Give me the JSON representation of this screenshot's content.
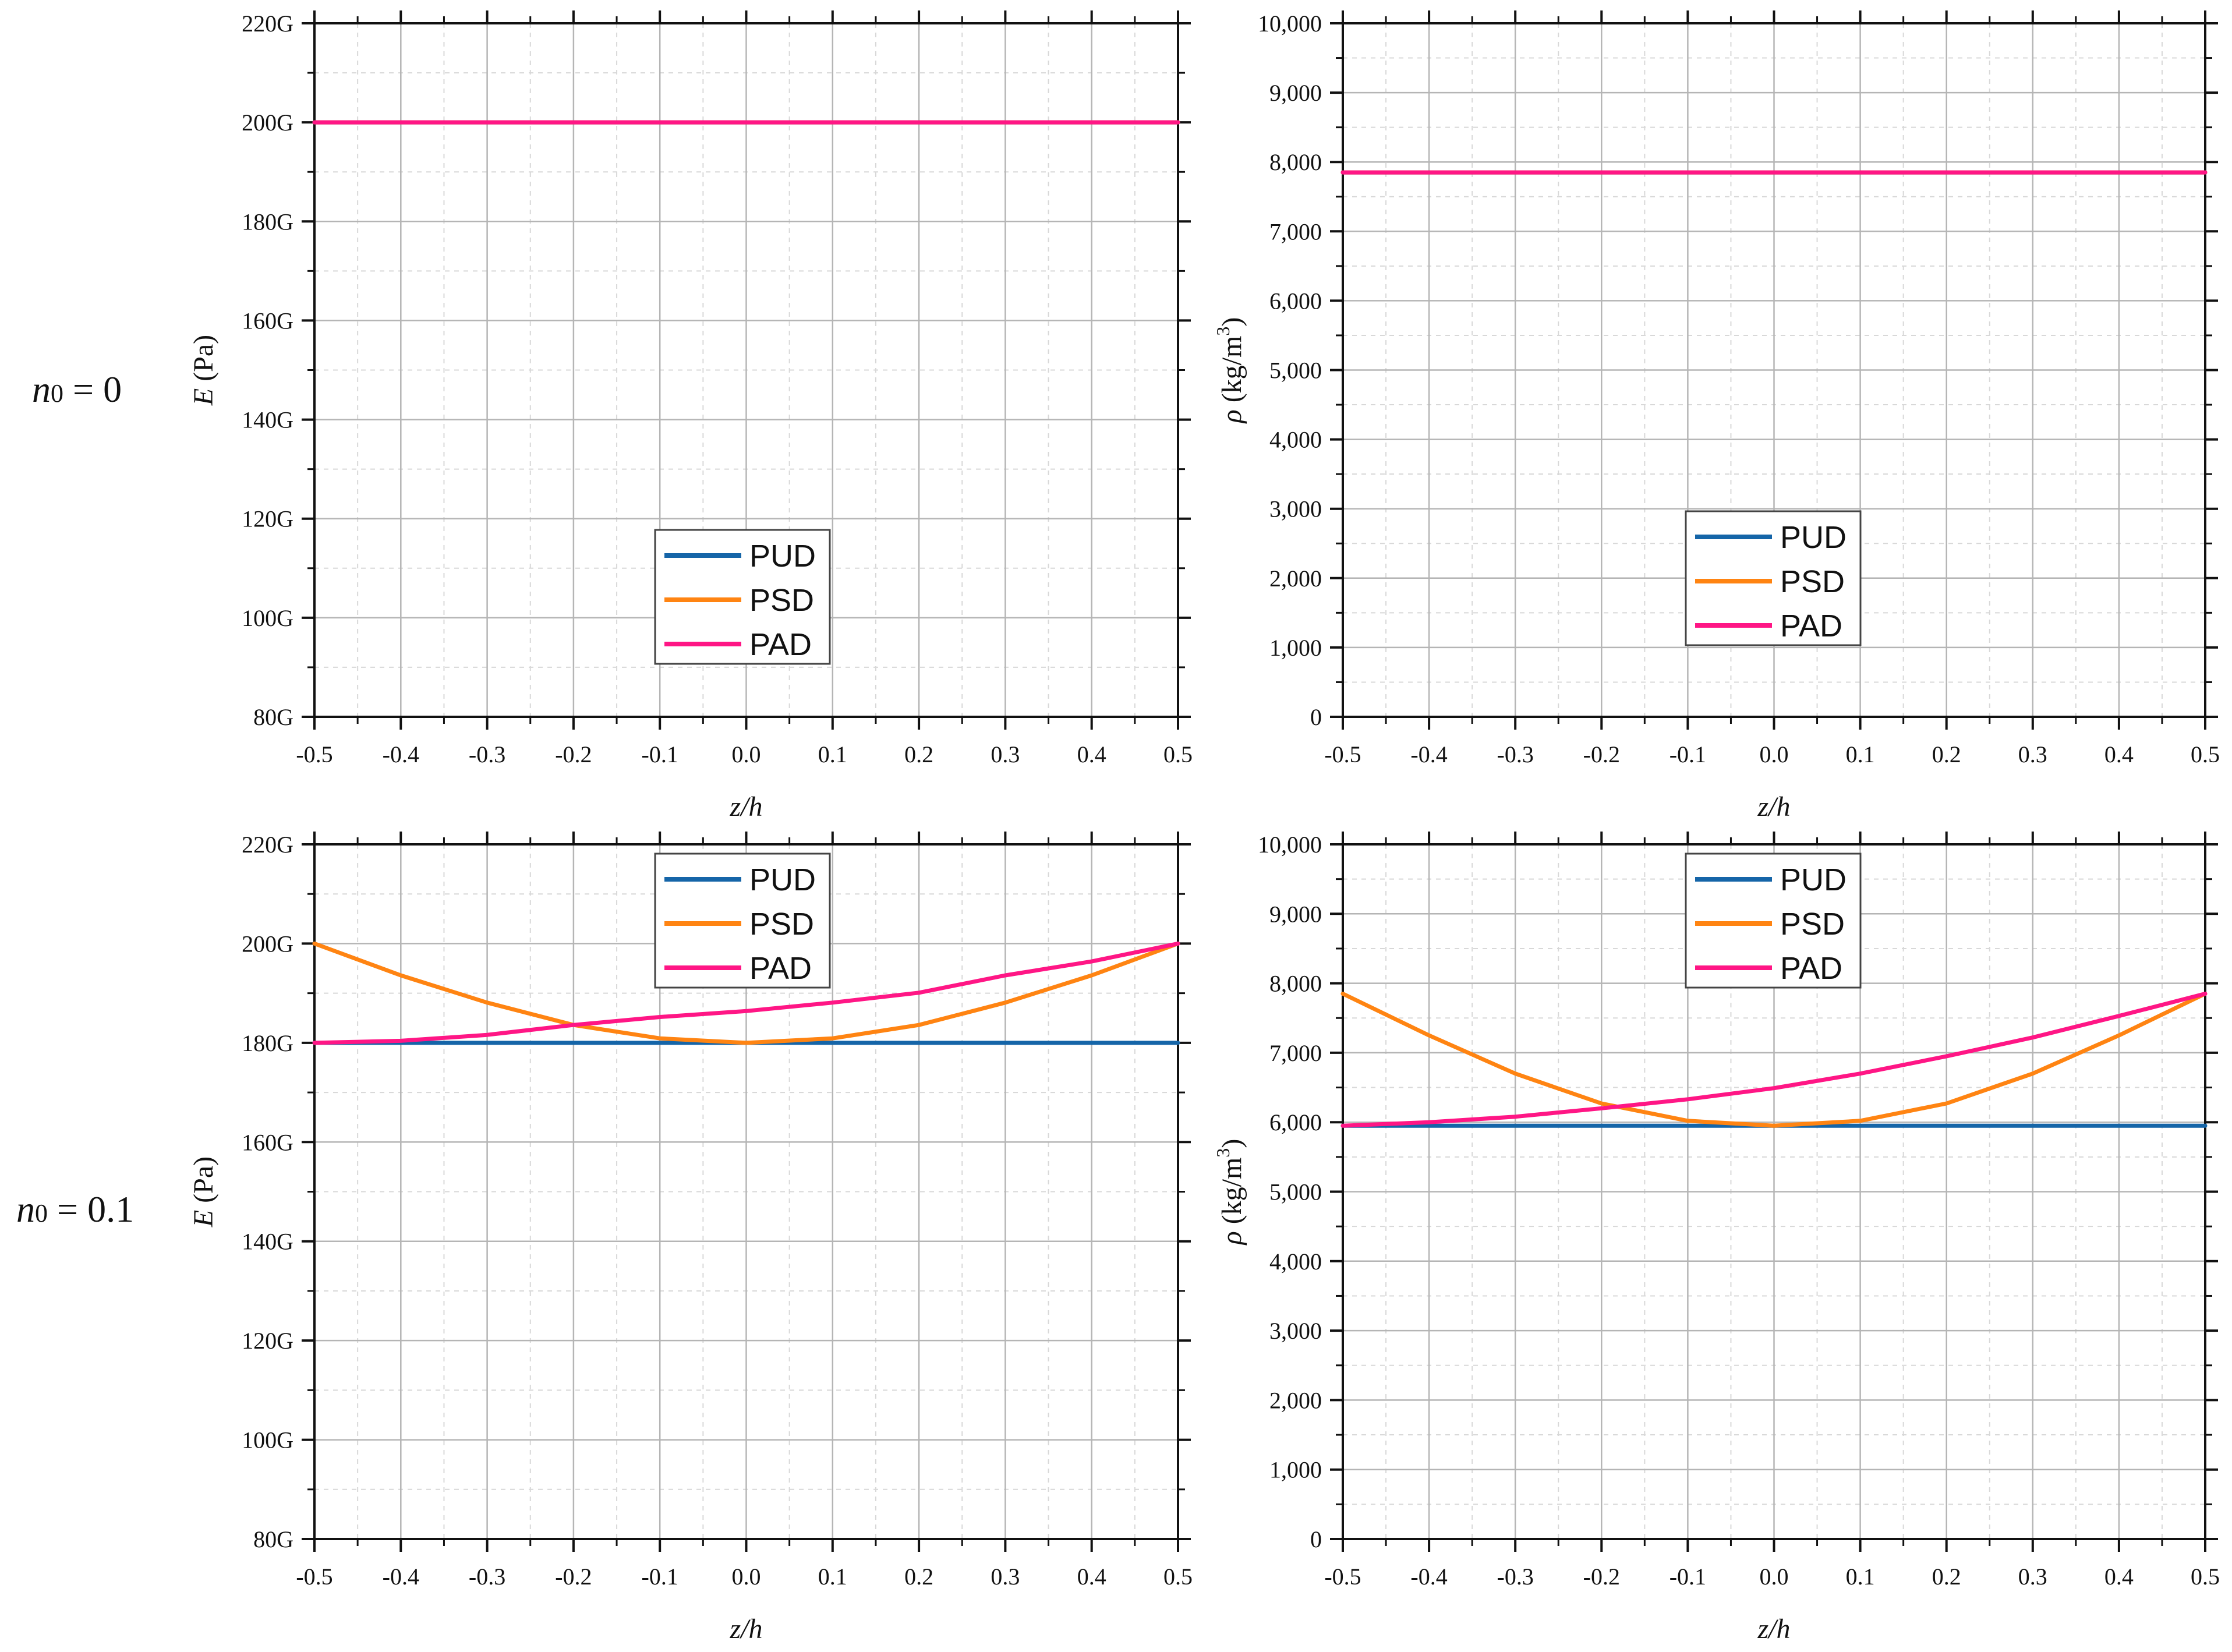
{
  "row_labels": [
    {
      "var": "n",
      "sub": "0",
      "rest": " = 0"
    },
    {
      "var": "n",
      "sub": "0",
      "rest": " = 0.1"
    }
  ],
  "colors": {
    "PUD": "#1565a8",
    "PSD": "#ff8412",
    "PAD": "#ff1685"
  },
  "chart_data": [
    {
      "type": "line",
      "panel": "E, n0 = 0",
      "xlabel": "z/h",
      "ylabel": {
        "var": "E",
        "unit": " (Pa)"
      },
      "xlim": [
        -0.5,
        0.5
      ],
      "ylim": [
        80,
        220
      ],
      "x_ticks": [
        "-0.5",
        "-0.4",
        "-0.3",
        "-0.2",
        "-0.1",
        "0.0",
        "0.1",
        "0.2",
        "0.3",
        "0.4",
        "0.5"
      ],
      "y_ticks": [
        "80G",
        "100G",
        "120G",
        "140G",
        "160G",
        "180G",
        "200G",
        "220G"
      ],
      "legend_position": "bottom-center",
      "legend": [
        "PUD",
        "PSD",
        "PAD"
      ],
      "series": [
        {
          "name": "PUD",
          "x": [
            -0.5,
            0.5
          ],
          "y": [
            200,
            200
          ]
        },
        {
          "name": "PSD",
          "x": [
            -0.5,
            0.5
          ],
          "y": [
            200,
            200
          ]
        },
        {
          "name": "PAD",
          "x": [
            -0.5,
            0.5
          ],
          "y": [
            200,
            200
          ]
        }
      ]
    },
    {
      "type": "line",
      "panel": "rho, n0 = 0",
      "xlabel": "z/h",
      "ylabel": {
        "var": "ρ",
        "unit": " (kg/m",
        "sup": "3",
        "close": ")"
      },
      "xlim": [
        -0.5,
        0.5
      ],
      "ylim": [
        0,
        10000
      ],
      "x_ticks": [
        "-0.5",
        "-0.4",
        "-0.3",
        "-0.2",
        "-0.1",
        "0.0",
        "0.1",
        "0.2",
        "0.3",
        "0.4",
        "0.5"
      ],
      "y_ticks": [
        "0",
        "1,000",
        "2,000",
        "3,000",
        "4,000",
        "5,000",
        "6,000",
        "7,000",
        "8,000",
        "9,000",
        "10,000"
      ],
      "legend_position": "bottom-center",
      "legend": [
        "PUD",
        "PSD",
        "PAD"
      ],
      "series": [
        {
          "name": "PUD",
          "x": [
            -0.5,
            0.5
          ],
          "y": [
            7850,
            7850
          ]
        },
        {
          "name": "PSD",
          "x": [
            -0.5,
            0.5
          ],
          "y": [
            7850,
            7850
          ]
        },
        {
          "name": "PAD",
          "x": [
            -0.5,
            0.5
          ],
          "y": [
            7850,
            7850
          ]
        }
      ]
    },
    {
      "type": "line",
      "panel": "E, n0 = 0.1",
      "xlabel": "z/h",
      "ylabel": {
        "var": "E",
        "unit": " (Pa)"
      },
      "xlim": [
        -0.5,
        0.5
      ],
      "ylim": [
        80,
        220
      ],
      "x_ticks": [
        "-0.5",
        "-0.4",
        "-0.3",
        "-0.2",
        "-0.1",
        "0.0",
        "0.1",
        "0.2",
        "0.3",
        "0.4",
        "0.5"
      ],
      "y_ticks": [
        "80G",
        "100G",
        "120G",
        "140G",
        "160G",
        "180G",
        "200G",
        "220G"
      ],
      "legend_position": "top-center",
      "legend": [
        "PUD",
        "PSD",
        "PAD"
      ],
      "series": [
        {
          "name": "PUD",
          "x": [
            -0.5,
            0.5
          ],
          "y": [
            180,
            180
          ]
        },
        {
          "name": "PSD",
          "x": [
            -0.5,
            -0.4,
            -0.3,
            -0.2,
            -0.1,
            0,
            0.1,
            0.2,
            0.3,
            0.4,
            0.5
          ],
          "y": [
            200,
            193.6,
            188.1,
            183.6,
            180.9,
            180,
            180.9,
            183.6,
            188.1,
            193.6,
            200
          ]
        },
        {
          "name": "PAD",
          "x": [
            -0.5,
            -0.4,
            -0.3,
            -0.2,
            -0.1,
            0,
            0.1,
            0.2,
            0.3,
            0.4,
            0.5
          ],
          "y": [
            180,
            180.4,
            181.6,
            183.6,
            185.2,
            186.4,
            188.1,
            190.1,
            193.6,
            196.4,
            200
          ]
        }
      ]
    },
    {
      "type": "line",
      "panel": "rho, n0 = 0.1",
      "xlabel": "z/h",
      "ylabel": {
        "var": "ρ",
        "unit": " (kg/m",
        "sup": "3",
        "close": ")"
      },
      "xlim": [
        -0.5,
        0.5
      ],
      "ylim": [
        0,
        10000
      ],
      "x_ticks": [
        "-0.5",
        "-0.4",
        "-0.3",
        "-0.2",
        "-0.1",
        "0.0",
        "0.1",
        "0.2",
        "0.3",
        "0.4",
        "0.5"
      ],
      "y_ticks": [
        "0",
        "1,000",
        "2,000",
        "3,000",
        "4,000",
        "5,000",
        "6,000",
        "7,000",
        "8,000",
        "9,000",
        "10,000"
      ],
      "legend_position": "top-center",
      "legend": [
        "PUD",
        "PSD",
        "PAD"
      ],
      "series": [
        {
          "name": "PUD",
          "x": [
            -0.5,
            0.5
          ],
          "y": [
            5950,
            5950
          ]
        },
        {
          "name": "PSD",
          "x": [
            -0.5,
            -0.4,
            -0.3,
            -0.2,
            -0.1,
            0,
            0.1,
            0.2,
            0.3,
            0.4,
            0.5
          ],
          "y": [
            7850,
            7250,
            6700,
            6270,
            6020,
            5950,
            6020,
            6270,
            6700,
            7250,
            7850
          ]
        },
        {
          "name": "PAD",
          "x": [
            -0.5,
            -0.4,
            -0.3,
            -0.2,
            -0.1,
            0,
            0.1,
            0.2,
            0.3,
            0.4,
            0.5
          ],
          "y": [
            5950,
            6000,
            6080,
            6200,
            6330,
            6490,
            6700,
            6950,
            7220,
            7530,
            7850
          ]
        }
      ]
    }
  ]
}
